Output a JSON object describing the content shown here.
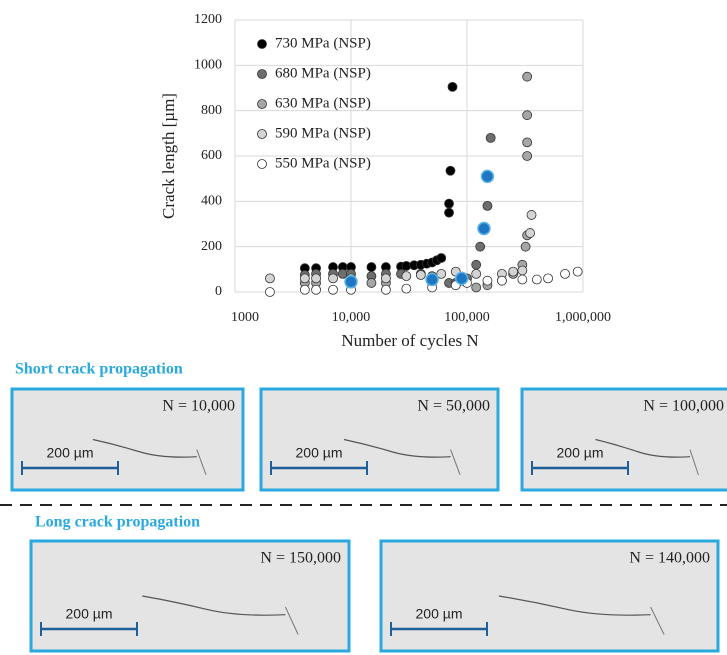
{
  "chart_data": {
    "type": "scatter",
    "xlabel": "Number of cycles N",
    "ylabel": "Crack length [µm]",
    "xlim": [
      1000,
      1000000
    ],
    "ylim": [
      0,
      1200
    ],
    "log_x": true,
    "grid": true,
    "legend": "upper left",
    "xticks": [
      1000,
      {
        "value": 10000,
        "label": "10,000"
      },
      {
        "value": 100000,
        "label": "100,000"
      },
      {
        "value": 1000000,
        "label": "1,000,000"
      }
    ],
    "yticks": [
      0,
      200,
      400,
      600,
      800,
      1000,
      1200
    ],
    "series": [
      {
        "name": "730 MPa (NSP)",
        "color": "#000000",
        "x": [
          4000,
          5000,
          7000,
          8500,
          10000,
          15000,
          20000,
          27000,
          30000,
          35000,
          40000,
          45000,
          50000,
          55000,
          60000,
          70000,
          70000,
          72000,
          75000
        ],
        "values": [
          105,
          105,
          110,
          110,
          110,
          110,
          110,
          112,
          115,
          118,
          120,
          125,
          130,
          140,
          150,
          350,
          390,
          535,
          905
        ]
      },
      {
        "name": "680 MPa (NSP)",
        "color": "#6e6e6e",
        "x": [
          4000,
          5000,
          7000,
          8500,
          10000,
          15000,
          20000,
          27000,
          40000,
          50000,
          70000,
          80000,
          90000,
          100000,
          120000,
          130000,
          140000,
          150000,
          160000
        ],
        "values": [
          75,
          80,
          80,
          80,
          80,
          70,
          80,
          80,
          80,
          70,
          40,
          40,
          50,
          60,
          120,
          200,
          280,
          380,
          680
        ]
      },
      {
        "name": "630 MPa (NSP)",
        "color": "#a6a6a6",
        "x": [
          4000,
          5000,
          10000,
          15000,
          20000,
          50000,
          80000,
          120000,
          150000,
          200000,
          250000,
          300000,
          320000,
          330000,
          330000,
          330000,
          330000,
          330000
        ],
        "values": [
          40,
          40,
          50,
          40,
          40,
          40,
          30,
          20,
          30,
          50,
          80,
          120,
          200,
          250,
          600,
          660,
          780,
          950
        ]
      },
      {
        "name": "590 MPa (NSP)",
        "color": "#d4d4d4",
        "x": [
          2000,
          4000,
          5000,
          7000,
          10000,
          20000,
          30000,
          40000,
          60000,
          80000,
          120000,
          200000,
          250000,
          300000,
          350000,
          360000
        ],
        "values": [
          60,
          60,
          60,
          60,
          60,
          60,
          70,
          75,
          80,
          90,
          80,
          80,
          90,
          95,
          260,
          340
        ]
      },
      {
        "name": "550 MPa (NSP)",
        "color": "#ffffff",
        "x": [
          2000,
          4000,
          5000,
          7000,
          10000,
          20000,
          30000,
          50000,
          80000,
          100000,
          150000,
          200000,
          300000,
          400000,
          500000,
          700000,
          900000
        ],
        "values": [
          0,
          10,
          10,
          10,
          10,
          10,
          15,
          20,
          30,
          40,
          50,
          50,
          55,
          55,
          60,
          80,
          90
        ]
      },
      {
        "color": "#1f77c4",
        "x": [
          10000,
          50000,
          90000,
          140000,
          150000
        ],
        "values": [
          45,
          55,
          60,
          280,
          510
        ]
      }
    ]
  },
  "micrographs": {
    "short": {
      "title": "Short crack propagation",
      "panels": [
        {
          "label": "N = 10,000",
          "scale": "200 µm"
        },
        {
          "label": "N = 50,000",
          "scale": "200 µm"
        },
        {
          "label": "N = 100,000",
          "scale": "200 µm"
        }
      ]
    },
    "long": {
      "title": "Long crack propagation",
      "panels": [
        {
          "label": "N = 150,000",
          "scale": "200 µm"
        },
        {
          "label": "N = 140,000",
          "scale": "200 µm"
        }
      ]
    }
  }
}
